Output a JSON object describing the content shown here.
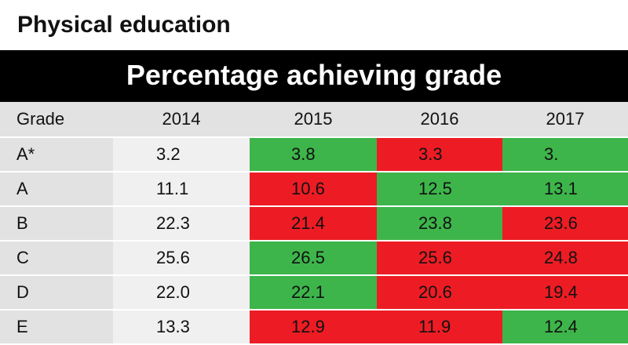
{
  "page_title": "Physical education",
  "chart_data": {
    "type": "table",
    "title": "Percentage achieving grade",
    "columns": [
      "Grade",
      "2014",
      "2015",
      "2016",
      "2017"
    ],
    "rows": [
      {
        "grade": "A*",
        "values": [
          "3.2",
          "3.8",
          "3.3",
          "3."
        ],
        "status": [
          null,
          "up",
          "down",
          "up"
        ]
      },
      {
        "grade": "A",
        "values": [
          "11.1",
          "10.6",
          "12.5",
          "13.1"
        ],
        "status": [
          null,
          "down",
          "up",
          "up"
        ]
      },
      {
        "grade": "B",
        "values": [
          "22.3",
          "21.4",
          "23.8",
          "23.6"
        ],
        "status": [
          null,
          "down",
          "up",
          "down"
        ]
      },
      {
        "grade": "C",
        "values": [
          "25.6",
          "26.5",
          "25.6",
          "24.8"
        ],
        "status": [
          null,
          "up",
          "down",
          "down"
        ]
      },
      {
        "grade": "D",
        "values": [
          "22.0",
          "22.1",
          "20.6",
          "19.4"
        ],
        "status": [
          null,
          "up",
          "down",
          "down"
        ]
      },
      {
        "grade": "E",
        "values": [
          "13.3",
          "12.9",
          "11.9",
          "12.4"
        ],
        "status": [
          null,
          "down",
          "down",
          "up"
        ]
      }
    ],
    "colors": {
      "up": "#3db54a",
      "down": "#ed1c24",
      "header": "#e2e2e2",
      "base": "#f0f0f0"
    }
  }
}
